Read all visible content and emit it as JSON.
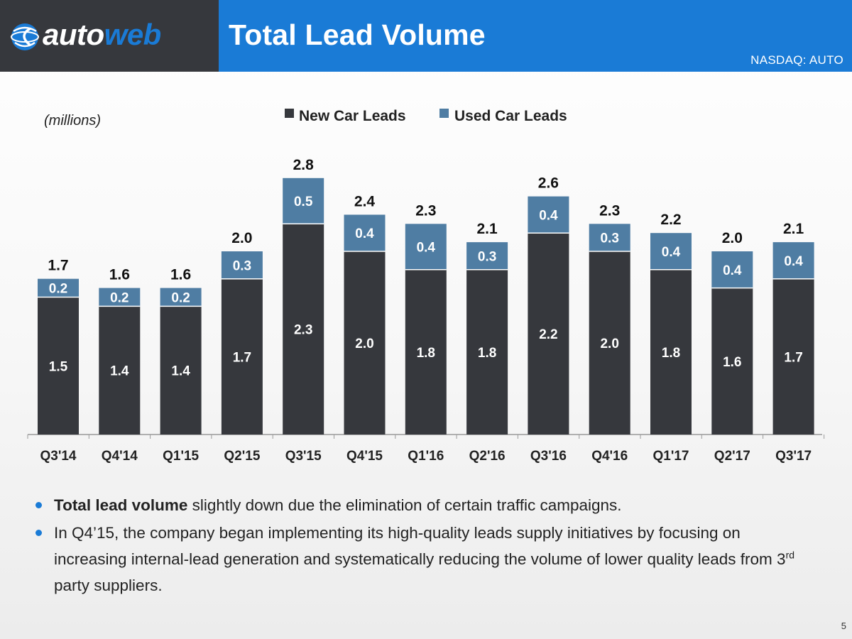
{
  "header": {
    "title": "Total Lead Volume",
    "ticker": "NASDAQ: AUTO",
    "logo": {
      "part1": "auto",
      "part2": "web",
      "icon": "globe-logo-icon"
    }
  },
  "colors": {
    "new": "#36383d",
    "used": "#4f7da3",
    "title_bar": "#1a7bd6",
    "logo_bg": "#36383d"
  },
  "chart_data": {
    "type": "bar",
    "stacked": true,
    "unit_label": "(millions)",
    "categories": [
      "Q3'14",
      "Q4'14",
      "Q1'15",
      "Q2'15",
      "Q3'15",
      "Q4'15",
      "Q1'16",
      "Q2'16",
      "Q3'16",
      "Q4'16",
      "Q1'17",
      "Q2'17",
      "Q3'17"
    ],
    "series": [
      {
        "name": "New Car Leads",
        "values": [
          1.5,
          1.4,
          1.4,
          1.7,
          2.3,
          2.0,
          1.8,
          1.8,
          2.2,
          2.0,
          1.8,
          1.6,
          1.7
        ]
      },
      {
        "name": "Used Car Leads",
        "values": [
          0.2,
          0.2,
          0.2,
          0.3,
          0.5,
          0.4,
          0.4,
          0.3,
          0.4,
          0.3,
          0.4,
          0.4,
          0.4
        ]
      }
    ],
    "totals": [
      1.7,
      1.6,
      1.6,
      2.0,
      2.8,
      2.4,
      2.3,
      2.1,
      2.6,
      2.3,
      2.2,
      2.0,
      2.1
    ],
    "ylim": [
      0,
      2.8
    ],
    "legend_position": "top-center",
    "grid": false
  },
  "bullets": [
    {
      "bold": "Total lead volume",
      "text": " slightly down due the elimination of certain traffic campaigns."
    },
    {
      "bold": "",
      "text": "In Q4’15, the company began implementing its high-quality leads supply initiatives by focusing on increasing internal-lead generation and systematically reducing the volume of lower quality leads from 3",
      "sup": "rd",
      "text_after": " party suppliers."
    }
  ],
  "slide_number": "5"
}
